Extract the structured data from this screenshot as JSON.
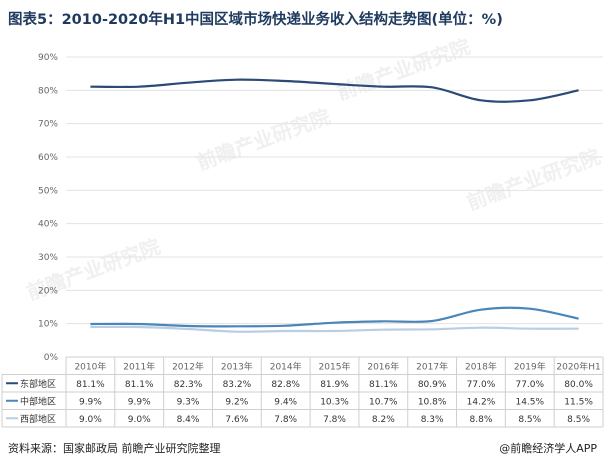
{
  "title": "图表5：2010-2020年H1中国区域市场快递业务收入结构走势图(单位：%)",
  "source": "资料来源：国家邮政局 前瞻产业研究院整理",
  "brand": "@前瞻经济学人APP",
  "watermark_text": "前瞻产业研究院",
  "chart_data": {
    "type": "line",
    "title": "图表5：2010-2020年H1中国区域市场快递业务收入结构走势图(单位：%)",
    "categories": [
      "2010年",
      "2011年",
      "2012年",
      "2013年",
      "2014年",
      "2015年",
      "2016年",
      "2017年",
      "2018年",
      "2019年",
      "2020年H1"
    ],
    "y_ticks": [
      "0%",
      "10%",
      "20%",
      "30%",
      "40%",
      "50%",
      "60%",
      "70%",
      "80%",
      "90%"
    ],
    "ylim": [
      0,
      90
    ],
    "grid": true,
    "legend_placement": "data-table-left",
    "series": [
      {
        "name": "东部地区",
        "color": "#2b4a75",
        "values": [
          81.1,
          81.1,
          82.3,
          83.2,
          82.8,
          81.9,
          81.1,
          80.9,
          77.0,
          77.0,
          80.0
        ],
        "labels": [
          "81.1%",
          "81.1%",
          "82.3%",
          "83.2%",
          "82.8%",
          "81.9%",
          "81.1%",
          "80.9%",
          "77.0%",
          "77.0%",
          "80.0%"
        ]
      },
      {
        "name": "中部地区",
        "color": "#4a86b8",
        "values": [
          9.9,
          9.9,
          9.3,
          9.2,
          9.4,
          10.3,
          10.7,
          10.8,
          14.2,
          14.5,
          11.5
        ],
        "labels": [
          "9.9%",
          "9.9%",
          "9.3%",
          "9.2%",
          "9.4%",
          "10.3%",
          "10.7%",
          "10.8%",
          "14.2%",
          "14.5%",
          "11.5%"
        ]
      },
      {
        "name": "西部地区",
        "color": "#b9cde3",
        "values": [
          9.0,
          9.0,
          8.4,
          7.6,
          7.8,
          7.8,
          8.2,
          8.3,
          8.8,
          8.5,
          8.5
        ],
        "labels": [
          "9.0%",
          "9.0%",
          "8.4%",
          "7.6%",
          "7.8%",
          "7.8%",
          "8.2%",
          "8.3%",
          "8.8%",
          "8.5%",
          "8.5%"
        ]
      }
    ]
  }
}
